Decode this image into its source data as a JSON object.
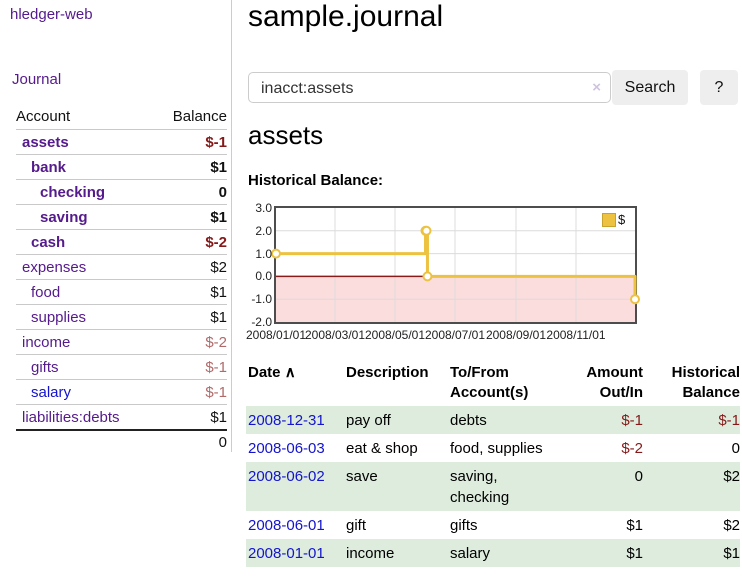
{
  "app": {
    "brand": "hledger-web",
    "nav": {
      "journal": "Journal"
    }
  },
  "sidebar": {
    "header": {
      "account": "Account",
      "balance": "Balance"
    },
    "accounts": [
      {
        "name": "assets",
        "balance": "$-1",
        "depth": 1,
        "bold": true
      },
      {
        "name": "bank",
        "balance": "$1",
        "depth": 2,
        "bold": true
      },
      {
        "name": "checking",
        "balance": "0",
        "depth": 3,
        "bold": true
      },
      {
        "name": "saving",
        "balance": "$1",
        "depth": 3,
        "bold": true
      },
      {
        "name": "cash",
        "balance": "$-2",
        "depth": 2,
        "bold": true
      },
      {
        "name": "expenses",
        "balance": "$2",
        "depth": 1,
        "bold": false
      },
      {
        "name": "food",
        "balance": "$1",
        "depth": 2,
        "bold": false
      },
      {
        "name": "supplies",
        "balance": "$1",
        "depth": 2,
        "bold": false
      },
      {
        "name": "income",
        "balance": "$-2",
        "depth": 1,
        "bold": false
      },
      {
        "name": "gifts",
        "balance": "$-1",
        "depth": 2,
        "bold": false
      },
      {
        "name": "salary",
        "balance": "$-1",
        "depth": 2,
        "bold": false,
        "blue_link": true
      },
      {
        "name": "liabilities:debts",
        "balance": "$1",
        "depth": 1,
        "bold": false
      }
    ],
    "total": "0"
  },
  "main": {
    "title": "sample.journal",
    "search": {
      "value": "inacct:assets",
      "clear_icon": "×",
      "search_button": "Search",
      "help_button": "?"
    },
    "account_heading": "assets",
    "chart_heading": "Historical Balance:"
  },
  "chart_data": {
    "type": "line",
    "step": true,
    "title": "Historical Balance",
    "series": [
      {
        "name": "$",
        "color": "#edc240",
        "points": [
          [
            "2008-01-01",
            1
          ],
          [
            "2008-06-01",
            2
          ],
          [
            "2008-06-02",
            2
          ],
          [
            "2008-06-03",
            0
          ],
          [
            "2008-12-31",
            -1
          ]
        ]
      }
    ],
    "xlim": [
      "2008-01-01",
      "2008-12-31"
    ],
    "ylim": [
      -2,
      3
    ],
    "yticks": [
      3,
      2,
      1,
      0,
      -1,
      -2
    ],
    "ytick_labels": [
      "3.0",
      "2.0",
      "1.0",
      "0.0",
      "-1.0",
      "-2.0"
    ],
    "xticks": [
      "2008-01-01",
      "2008-03-01",
      "2008-05-01",
      "2008-07-01",
      "2008-09-01",
      "2008-11-01"
    ],
    "xtick_labels": [
      "2008/01/01",
      "2008/03/01",
      "2008/05/01",
      "2008/07/01",
      "2008/09/01",
      "2008/11/01"
    ],
    "grid": true,
    "legend": {
      "position": "top-right",
      "label": "$"
    },
    "grid_color": "#dcdcdc",
    "negative_region_color": "#fcdddd",
    "zero_line_color": "#8b1a1a"
  },
  "register": {
    "headers": {
      "date": "Date",
      "sort_icon": "∧",
      "description": "Description",
      "accounts": "To/From Account(s)",
      "amount": "Amount Out/In",
      "balance": "Historical Balance"
    },
    "rows": [
      {
        "date": "2008-12-31",
        "description": "pay off",
        "accounts": "debts",
        "amount": "$-1",
        "balance": "$-1"
      },
      {
        "date": "2008-06-03",
        "description": "eat & shop",
        "accounts": "food, supplies",
        "amount": "$-2",
        "balance": "0"
      },
      {
        "date": "2008-06-02",
        "description": "save",
        "accounts": "saving, checking",
        "amount": "0",
        "balance": "$2"
      },
      {
        "date": "2008-06-01",
        "description": "gift",
        "accounts": "gifts",
        "amount": "$1",
        "balance": "$2"
      },
      {
        "date": "2008-01-01",
        "description": "income",
        "accounts": "salary",
        "amount": "$1",
        "balance": "$1"
      }
    ]
  }
}
